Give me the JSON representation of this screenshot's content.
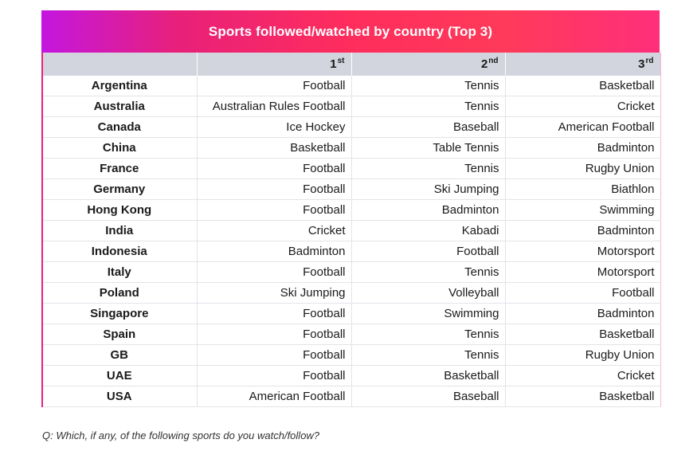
{
  "title": "Sports followed/watched by country (Top 3)",
  "columns": [
    {
      "label": "",
      "sup": ""
    },
    {
      "label": "1",
      "sup": "st"
    },
    {
      "label": "2",
      "sup": "nd"
    },
    {
      "label": "3",
      "sup": "rd"
    }
  ],
  "rows": [
    {
      "country": "Argentina",
      "first": "Football",
      "second": "Tennis",
      "third": "Basketball"
    },
    {
      "country": "Australia",
      "first": "Australian Rules Football",
      "second": "Tennis",
      "third": "Cricket"
    },
    {
      "country": "Canada",
      "first": "Ice Hockey",
      "second": "Baseball",
      "third": "American Football"
    },
    {
      "country": "China",
      "first": "Basketball",
      "second": "Table Tennis",
      "third": "Badminton"
    },
    {
      "country": "France",
      "first": "Football",
      "second": "Tennis",
      "third": "Rugby Union"
    },
    {
      "country": "Germany",
      "first": "Football",
      "second": "Ski Jumping",
      "third": "Biathlon"
    },
    {
      "country": "Hong Kong",
      "first": "Football",
      "second": "Badminton",
      "third": "Swimming"
    },
    {
      "country": "India",
      "first": "Cricket",
      "second": "Kabadi",
      "third": "Badminton"
    },
    {
      "country": "Indonesia",
      "first": "Badminton",
      "second": "Football",
      "third": "Motorsport"
    },
    {
      "country": "Italy",
      "first": "Football",
      "second": "Tennis",
      "third": "Motorsport"
    },
    {
      "country": "Poland",
      "first": "Ski Jumping",
      "second": "Volleyball",
      "third": "Football"
    },
    {
      "country": "Singapore",
      "first": "Football",
      "second": "Swimming",
      "third": "Badminton"
    },
    {
      "country": "Spain",
      "first": "Football",
      "second": "Tennis",
      "third": "Basketball"
    },
    {
      "country": "GB",
      "first": "Football",
      "second": "Tennis",
      "third": "Rugby Union"
    },
    {
      "country": "UAE",
      "first": "Football",
      "second": "Basketball",
      "third": "Cricket"
    },
    {
      "country": "USA",
      "first": "American Football",
      "second": "Baseball",
      "third": "Basketball"
    }
  ],
  "footnote": "Q: Which, if any, of the following sports do you watch/follow?",
  "colors": {
    "header_gradient_start": "#c416e0",
    "header_gradient_mid": "#ff2d5c",
    "header_gradient_end": "#ff2f7a",
    "column_header_bg": "#d2d5dd",
    "accent_border": "#e8207a"
  }
}
